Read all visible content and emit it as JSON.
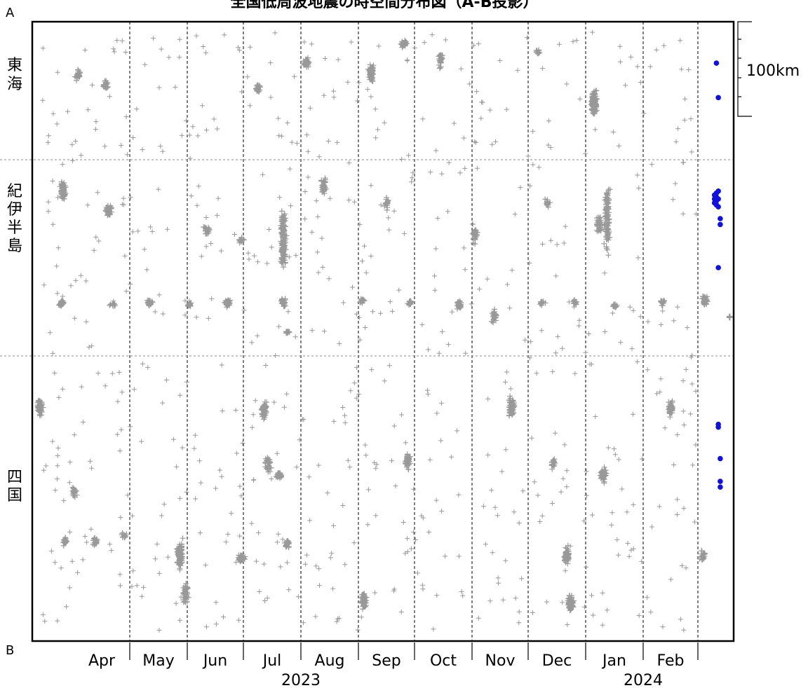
{
  "chart_data": {
    "type": "scatter",
    "title": "全国低周波地震の時空間分布図（A-B投影）",
    "corner_labels": {
      "top": "A",
      "bottom": "B"
    },
    "x_axis": {
      "months": [
        "Apr",
        "May",
        "Jun",
        "Jul",
        "Aug",
        "Sep",
        "Oct",
        "Nov",
        "Dec",
        "Jan",
        "Feb"
      ],
      "years": [
        "2023",
        "2024"
      ],
      "range": [
        "2023-03-01",
        "2024-03-01"
      ]
    },
    "regions": [
      "東海",
      "紀伊半島",
      "四国"
    ],
    "scale_bar": {
      "label": "100km"
    },
    "gray_clusters": [
      {
        "region": "東海",
        "date": "2023-03-25",
        "pos": 0.38,
        "spread": 0.08,
        "n": 26
      },
      {
        "region": "東海",
        "date": "2023-04-08",
        "pos": 0.46,
        "spread": 0.06,
        "n": 22
      },
      {
        "region": "東海",
        "date": "2023-06-27",
        "pos": 0.48,
        "spread": 0.05,
        "n": 24
      },
      {
        "region": "東海",
        "date": "2023-07-22",
        "pos": 0.3,
        "spread": 0.06,
        "n": 36
      },
      {
        "region": "東海",
        "date": "2023-08-25",
        "pos": 0.37,
        "spread": 0.1,
        "n": 70
      },
      {
        "region": "東海",
        "date": "2023-09-11",
        "pos": 0.16,
        "spread": 0.04,
        "n": 38
      },
      {
        "region": "東海",
        "date": "2023-09-30",
        "pos": 0.28,
        "spread": 0.1,
        "n": 26
      },
      {
        "region": "東海",
        "date": "2023-11-20",
        "pos": 0.22,
        "spread": 0.04,
        "n": 10
      },
      {
        "region": "東海",
        "date": "2023-12-19",
        "pos": 0.58,
        "spread": 0.16,
        "n": 120
      },
      {
        "region": "紀伊半島",
        "date": "2023-03-17",
        "pos": 0.16,
        "spread": 0.08,
        "n": 80
      },
      {
        "region": "紀伊半島",
        "date": "2023-04-10",
        "pos": 0.26,
        "spread": 0.06,
        "n": 40
      },
      {
        "region": "紀伊半島",
        "date": "2023-05-31",
        "pos": 0.36,
        "spread": 0.05,
        "n": 22
      },
      {
        "region": "紀伊半島",
        "date": "2023-06-18",
        "pos": 0.41,
        "spread": 0.03,
        "n": 14
      },
      {
        "region": "紀伊半島",
        "date": "2023-07-10",
        "pos": 0.4,
        "spread": 0.3,
        "n": 150
      },
      {
        "region": "紀伊半島",
        "date": "2023-07-31",
        "pos": 0.14,
        "spread": 0.07,
        "n": 50
      },
      {
        "region": "紀伊半島",
        "date": "2023-09-02",
        "pos": 0.22,
        "spread": 0.05,
        "n": 16
      },
      {
        "region": "紀伊半島",
        "date": "2023-10-18",
        "pos": 0.38,
        "spread": 0.08,
        "n": 30
      },
      {
        "region": "紀伊半島",
        "date": "2023-11-25",
        "pos": 0.22,
        "spread": 0.05,
        "n": 18
      },
      {
        "region": "紀伊半島",
        "date": "2023-12-22",
        "pos": 0.33,
        "spread": 0.07,
        "n": 40
      },
      {
        "region": "紀伊半島",
        "date": "2023-12-26",
        "pos": 0.3,
        "spread": 0.3,
        "n": 110
      },
      {
        "region": "紀伊半島",
        "date": "2023-03-16",
        "pos": 0.73,
        "spread": 0.03,
        "n": 24
      },
      {
        "region": "紀伊半島",
        "date": "2023-04-12",
        "pos": 0.74,
        "spread": 0.02,
        "n": 10
      },
      {
        "region": "紀伊半島",
        "date": "2023-05-01",
        "pos": 0.73,
        "spread": 0.03,
        "n": 30
      },
      {
        "region": "紀伊半島",
        "date": "2023-05-22",
        "pos": 0.74,
        "spread": 0.03,
        "n": 14
      },
      {
        "region": "紀伊半島",
        "date": "2023-06-11",
        "pos": 0.73,
        "spread": 0.03,
        "n": 40
      },
      {
        "region": "紀伊半島",
        "date": "2023-07-10",
        "pos": 0.73,
        "spread": 0.04,
        "n": 30
      },
      {
        "region": "紀伊半島",
        "date": "2023-07-12",
        "pos": 0.88,
        "spread": 0.02,
        "n": 10
      },
      {
        "region": "紀伊半島",
        "date": "2023-08-20",
        "pos": 0.72,
        "spread": 0.03,
        "n": 14
      },
      {
        "region": "紀伊半島",
        "date": "2023-09-14",
        "pos": 0.73,
        "spread": 0.03,
        "n": 14
      },
      {
        "region": "紀伊半島",
        "date": "2023-10-10",
        "pos": 0.74,
        "spread": 0.04,
        "n": 30
      },
      {
        "region": "紀伊半島",
        "date": "2023-10-28",
        "pos": 0.8,
        "spread": 0.06,
        "n": 30
      },
      {
        "region": "紀伊半島",
        "date": "2023-11-22",
        "pos": 0.73,
        "spread": 0.03,
        "n": 14
      },
      {
        "region": "紀伊半島",
        "date": "2023-12-09",
        "pos": 0.73,
        "spread": 0.03,
        "n": 16
      },
      {
        "region": "紀伊半島",
        "date": "2023-12-30",
        "pos": 0.74,
        "spread": 0.03,
        "n": 16
      },
      {
        "region": "紀伊半島",
        "date": "2024-01-24",
        "pos": 0.73,
        "spread": 0.03,
        "n": 16
      },
      {
        "region": "紀伊半島",
        "date": "2024-02-15",
        "pos": 0.72,
        "spread": 0.05,
        "n": 40
      },
      {
        "region": "紀伊半島",
        "date": "2024-02-28",
        "pos": 0.8,
        "spread": 0.02,
        "n": 8
      },
      {
        "region": "四国",
        "date": "2023-03-05",
        "pos": 0.18,
        "spread": 0.05,
        "n": 60
      },
      {
        "region": "四国",
        "date": "2023-03-18",
        "pos": 0.65,
        "spread": 0.03,
        "n": 24
      },
      {
        "region": "四国",
        "date": "2023-03-23",
        "pos": 0.48,
        "spread": 0.03,
        "n": 22
      },
      {
        "region": "四国",
        "date": "2023-04-03",
        "pos": 0.65,
        "spread": 0.03,
        "n": 16
      },
      {
        "region": "四国",
        "date": "2023-04-18",
        "pos": 0.63,
        "spread": 0.02,
        "n": 14
      },
      {
        "region": "四国",
        "date": "2023-05-17",
        "pos": 0.7,
        "spread": 0.08,
        "n": 120
      },
      {
        "region": "四国",
        "date": "2023-05-20",
        "pos": 0.83,
        "spread": 0.06,
        "n": 50
      },
      {
        "region": "四国",
        "date": "2023-06-18",
        "pos": 0.71,
        "spread": 0.02,
        "n": 60
      },
      {
        "region": "四国",
        "date": "2023-06-30",
        "pos": 0.19,
        "spread": 0.06,
        "n": 50
      },
      {
        "region": "四国",
        "date": "2023-07-02",
        "pos": 0.38,
        "spread": 0.04,
        "n": 40
      },
      {
        "region": "四国",
        "date": "2023-07-08",
        "pos": 0.42,
        "spread": 0.02,
        "n": 40
      },
      {
        "region": "四国",
        "date": "2023-07-12",
        "pos": 0.66,
        "spread": 0.03,
        "n": 30
      },
      {
        "region": "四国",
        "date": "2023-08-21",
        "pos": 0.86,
        "spread": 0.06,
        "n": 60
      },
      {
        "region": "四国",
        "date": "2023-09-13",
        "pos": 0.37,
        "spread": 0.05,
        "n": 40
      },
      {
        "region": "四国",
        "date": "2023-11-06",
        "pos": 0.18,
        "spread": 0.06,
        "n": 70
      },
      {
        "region": "四国",
        "date": "2023-11-28",
        "pos": 0.38,
        "spread": 0.04,
        "n": 20
      },
      {
        "region": "四国",
        "date": "2023-12-05",
        "pos": 0.7,
        "spread": 0.05,
        "n": 70
      },
      {
        "region": "四国",
        "date": "2023-12-07",
        "pos": 0.87,
        "spread": 0.05,
        "n": 70
      },
      {
        "region": "四国",
        "date": "2023-12-24",
        "pos": 0.42,
        "spread": 0.05,
        "n": 60
      },
      {
        "region": "四国",
        "date": "2024-01-28",
        "pos": 0.18,
        "spread": 0.05,
        "n": 50
      },
      {
        "region": "四国",
        "date": "2024-02-14",
        "pos": 0.7,
        "spread": 0.03,
        "n": 26
      }
    ],
    "blue_points": [
      {
        "region": "東海",
        "date": "2024-02-21",
        "pos": 0.3
      },
      {
        "region": "東海",
        "date": "2024-02-22",
        "pos": 0.55
      },
      {
        "region": "紀伊半島",
        "date": "2024-02-20",
        "pos": 0.18
      },
      {
        "region": "紀伊半島",
        "date": "2024-02-20",
        "pos": 0.2
      },
      {
        "region": "紀伊半島",
        "date": "2024-02-20",
        "pos": 0.22
      },
      {
        "region": "紀伊半島",
        "date": "2024-02-21",
        "pos": 0.19
      },
      {
        "region": "紀伊半島",
        "date": "2024-02-21",
        "pos": 0.21
      },
      {
        "region": "紀伊半島",
        "date": "2024-02-21",
        "pos": 0.17
      },
      {
        "region": "紀伊半島",
        "date": "2024-02-21",
        "pos": 0.23
      },
      {
        "region": "紀伊半島",
        "date": "2024-02-22",
        "pos": 0.16
      },
      {
        "region": "紀伊半島",
        "date": "2024-02-22",
        "pos": 0.2
      },
      {
        "region": "紀伊半島",
        "date": "2024-02-22",
        "pos": 0.24
      },
      {
        "region": "紀伊半島",
        "date": "2024-02-23",
        "pos": 0.3
      },
      {
        "region": "紀伊半島",
        "date": "2024-02-23",
        "pos": 0.33
      },
      {
        "region": "紀伊半島",
        "date": "2024-02-22",
        "pos": 0.55
      },
      {
        "region": "四国",
        "date": "2024-02-22",
        "pos": 0.24
      },
      {
        "region": "四国",
        "date": "2024-02-22",
        "pos": 0.25
      },
      {
        "region": "四国",
        "date": "2024-02-23",
        "pos": 0.36
      },
      {
        "region": "四国",
        "date": "2024-02-23",
        "pos": 0.44
      },
      {
        "region": "四国",
        "date": "2024-02-23",
        "pos": 0.46
      }
    ],
    "colors": {
      "background_events": "#999999",
      "recent_events": "#1010e0",
      "axis": "#000000"
    }
  }
}
